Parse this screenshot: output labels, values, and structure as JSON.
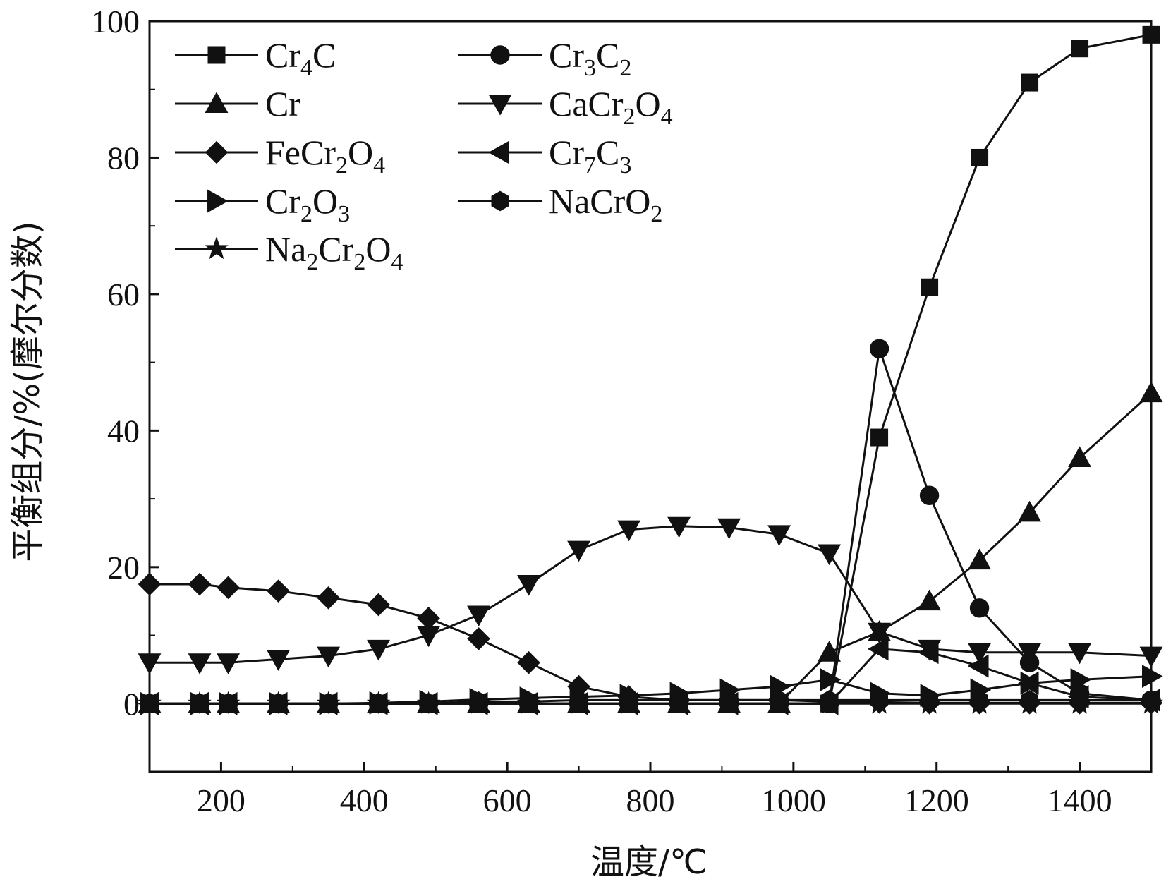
{
  "chart_data": {
    "type": "line",
    "title": "",
    "xlabel": "温度/℃",
    "ylabel": "平衡组分/%(摩尔分数)",
    "xlim": [
      100,
      1500
    ],
    "ylim": [
      -10,
      100
    ],
    "xticks": [
      200,
      400,
      600,
      800,
      1000,
      1200,
      1400
    ],
    "yticks": [
      0,
      20,
      40,
      60,
      80,
      100
    ],
    "grid": false,
    "legend_position": "top-left",
    "x": [
      100,
      170,
      210,
      280,
      350,
      420,
      490,
      560,
      630,
      700,
      770,
      840,
      910,
      980,
      1050,
      1120,
      1190,
      1260,
      1330,
      1400,
      1500
    ],
    "series": [
      {
        "name": "Cr4C",
        "label_main": "Cr",
        "label_sub1": "4",
        "label_mid": "C",
        "label_sub2": "",
        "marker": "square",
        "values": [
          0,
          0,
          0,
          0,
          0,
          0,
          0,
          0,
          0,
          0,
          0,
          0,
          0,
          0,
          0,
          39,
          61,
          80,
          91,
          96,
          98
        ]
      },
      {
        "name": "Cr3C2",
        "label_main": "Cr",
        "label_sub1": "3",
        "label_mid": "C",
        "label_sub2": "2",
        "marker": "circle",
        "values": [
          0,
          0,
          0,
          0,
          0,
          0,
          0,
          0,
          0,
          0,
          0,
          0,
          0,
          0,
          0,
          52,
          30.5,
          14,
          6,
          1.5,
          0.5
        ]
      },
      {
        "name": "Cr",
        "label_main": "Cr",
        "label_sub1": "",
        "label_mid": "",
        "label_sub2": "",
        "marker": "triangle-up",
        "values": [
          0,
          0,
          0,
          0,
          0,
          0,
          0,
          0,
          0,
          0,
          0,
          0,
          0,
          0,
          7.5,
          10.5,
          15,
          21,
          28,
          36,
          45.5
        ]
      },
      {
        "name": "CaCr2O4",
        "label_main": "CaCr",
        "label_sub1": "2",
        "label_mid": "O",
        "label_sub2": "4",
        "marker": "triangle-down",
        "values": [
          6,
          6,
          6,
          6.5,
          7,
          8,
          10,
          13,
          17.5,
          22.5,
          25.5,
          26,
          25.8,
          24.8,
          22,
          10.5,
          8,
          7.5,
          7.5,
          7.5,
          7
        ]
      },
      {
        "name": "FeCr2O4",
        "label_main": "FeCr",
        "label_sub1": "2",
        "label_mid": "O",
        "label_sub2": "4",
        "marker": "diamond",
        "values": [
          17.5,
          17.5,
          17,
          16.5,
          15.5,
          14.5,
          12.5,
          9.5,
          6,
          2.5,
          1,
          0.5,
          0.5,
          0.5,
          0.3,
          0.2,
          0.1,
          0.1,
          0.1,
          0.1,
          0.1
        ]
      },
      {
        "name": "Cr7C3",
        "label_main": "Cr",
        "label_sub1": "7",
        "label_mid": "C",
        "label_sub2": "3",
        "marker": "triangle-left",
        "values": [
          0,
          0,
          0,
          0,
          0,
          0,
          0,
          0,
          0,
          0,
          0,
          0,
          0,
          0,
          0,
          8,
          7.5,
          5.5,
          3,
          1,
          0.5
        ]
      },
      {
        "name": "Cr2O3",
        "label_main": "Cr",
        "label_sub1": "2",
        "label_mid": "O",
        "label_sub2": "3",
        "marker": "triangle-right",
        "values": [
          0,
          0,
          0,
          0,
          0,
          0.1,
          0.3,
          0.6,
          0.8,
          1,
          1.2,
          1.5,
          2,
          2.5,
          3.5,
          1.5,
          1.2,
          2,
          3,
          3.5,
          4
        ]
      },
      {
        "name": "NaCrO2",
        "label_main": "NaCrO",
        "label_sub1": "2",
        "label_mid": "",
        "label_sub2": "",
        "marker": "hexagon",
        "values": [
          0,
          0,
          0,
          0,
          0,
          0,
          0,
          0.3,
          0.3,
          0.5,
          0.5,
          0.5,
          0.5,
          0.5,
          0.5,
          0.5,
          0.5,
          0.5,
          0.5,
          0.5,
          0.5
        ]
      },
      {
        "name": "Na2Cr2O4",
        "label_main": "Na",
        "label_sub1": "2",
        "label_mid": "Cr",
        "label_sub2": "2",
        "label_mid2": "O",
        "label_sub3": "4",
        "marker": "star",
        "values": [
          0,
          0,
          0,
          0,
          0,
          0,
          0,
          0,
          0,
          0,
          0,
          0,
          0,
          0,
          0,
          0,
          0,
          0,
          0,
          0,
          0
        ]
      }
    ]
  }
}
